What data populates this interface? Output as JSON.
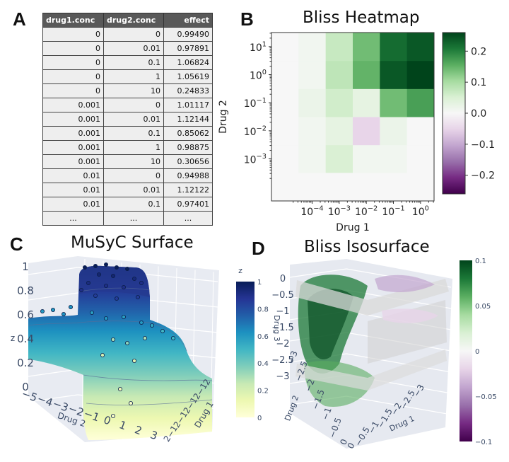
{
  "panels": {
    "a": {
      "letter": "A"
    },
    "b": {
      "letter": "B",
      "title": "Bliss Heatmap"
    },
    "c": {
      "letter": "C",
      "title": "MuSyC Surface"
    },
    "d": {
      "letter": "D",
      "title": "Bliss Isosurface"
    }
  },
  "chart_data": [
    {
      "type": "table",
      "columns": [
        "drug1.conc",
        "drug2.conc",
        "effect"
      ],
      "rows": [
        [
          "0",
          "0",
          "0.99490"
        ],
        [
          "0",
          "0.01",
          "0.97891"
        ],
        [
          "0",
          "0.1",
          "1.06824"
        ],
        [
          "0",
          "1",
          "1.05619"
        ],
        [
          "0",
          "10",
          "0.24833"
        ],
        [
          "0.001",
          "0",
          "1.01117"
        ],
        [
          "0.001",
          "0.01",
          "1.12144"
        ],
        [
          "0.001",
          "0.1",
          "0.85062"
        ],
        [
          "0.001",
          "1",
          "0.98875"
        ],
        [
          "0.001",
          "10",
          "0.30656"
        ],
        [
          "0.01",
          "0",
          "0.94988"
        ],
        [
          "0.01",
          "0.01",
          "1.12122"
        ],
        [
          "0.01",
          "0.1",
          "0.97401"
        ],
        [
          "...",
          "...",
          "..."
        ]
      ]
    },
    {
      "type": "heatmap",
      "title": "Bliss Heatmap",
      "xlabel": "Drug 1",
      "ylabel": "Drug 2",
      "x_scale": "log",
      "y_scale": "log",
      "x_ticks": [
        "10^-4",
        "10^-3",
        "10^-2",
        "10^-1",
        "10^0"
      ],
      "y_ticks": [
        "10^-3",
        "10^-2",
        "10^-1",
        "10^0",
        "10^1"
      ],
      "x_centers": [
        1e-05,
        0.0001,
        0.001,
        0.01,
        0.1,
        1
      ],
      "y_centers": [
        0.001,
        0.01,
        0.1,
        1,
        10
      ],
      "values": [
        [
          0.0,
          0.01,
          0.05,
          0.01,
          0.01,
          0.0
        ],
        [
          0.0,
          0.01,
          0.03,
          -0.05,
          0.02,
          0.0
        ],
        [
          0.0,
          0.02,
          0.06,
          0.03,
          0.14,
          0.17
        ],
        [
          0.0,
          0.01,
          0.08,
          0.15,
          0.24,
          0.26
        ],
        [
          0.0,
          0.01,
          0.07,
          0.14,
          0.22,
          0.24
        ]
      ],
      "colorbar_ticks": [
        "0.2",
        "0.1",
        "0.0",
        "−0.1",
        "−0.2"
      ],
      "colorbar_values": [
        0.2,
        0.1,
        0.0,
        -0.1,
        -0.2
      ],
      "colorbar_range": [
        -0.26,
        0.26
      ],
      "colormap": "PRGn",
      "colors": {
        "positive": "#00441b",
        "neutral": "#f7f7f7",
        "negative": "#40004b"
      }
    },
    {
      "type": "surface",
      "title": "MuSyC Surface",
      "xlabel": "Drug 1",
      "ylabel": "Drug 2",
      "zlabel": "z",
      "z_ticks": [
        "0",
        "0.2",
        "0.4",
        "0.6",
        "0.8",
        "1"
      ],
      "drug2_ticks": [
        "−5",
        "−4",
        "−3",
        "−2",
        "−1",
        "0",
        "1",
        "2",
        "3"
      ],
      "colorbar_label": "z",
      "colorbar_ticks": [
        "1",
        "0.8",
        "0.6",
        "0.4",
        "0.2",
        "0"
      ],
      "colorbar_values": [
        1,
        0.8,
        0.6,
        0.4,
        0.2,
        0
      ],
      "colormap": "YlGnBu",
      "z_range": [
        0,
        1
      ]
    },
    {
      "type": "isosurface",
      "title": "Bliss Isosurface",
      "xlabel": "Drug 1",
      "ylabel": "Drug 2",
      "zlabel": "Drug 3",
      "drug3_ticks": [
        "0",
        "−0.5",
        "−1",
        "−1.5",
        "−2",
        "−2.5",
        "−3"
      ],
      "drug2_ticks": [
        "0",
        "−0.5",
        "−1",
        "−1.5",
        "−2",
        "−2.5",
        "−3"
      ],
      "drug1_ticks": [
        "0",
        "−0.5",
        "−1",
        "−1.5",
        "−2",
        "−2.5",
        "−3"
      ],
      "colorbar_ticks": [
        "0.1",
        "0.05",
        "0",
        "−0.05",
        "−0.1"
      ],
      "colorbar_values": [
        0.1,
        0.05,
        0,
        -0.05,
        -0.1
      ],
      "colormap": "PRGn",
      "colorbar_range": [
        -0.1,
        0.1
      ]
    }
  ]
}
